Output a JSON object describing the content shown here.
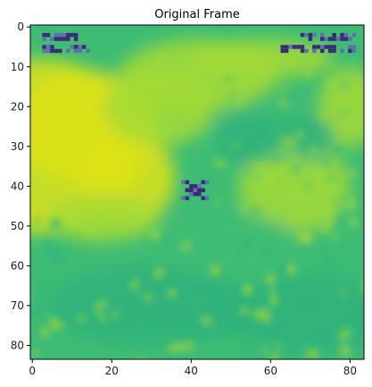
{
  "figure": {
    "title": "Original Frame",
    "colormap": "viridis",
    "frame": {
      "width": 84,
      "height": 84,
      "xlim": [
        -0.5,
        83.5
      ],
      "ylim": [
        83.5,
        -0.5
      ]
    },
    "x_ticks": [
      {
        "value": 0,
        "label": "0"
      },
      {
        "value": 20,
        "label": "20"
      },
      {
        "value": 40,
        "label": "40"
      },
      {
        "value": 60,
        "label": "60"
      },
      {
        "value": 80,
        "label": "80"
      }
    ],
    "y_ticks": [
      {
        "value": 0,
        "label": "0"
      },
      {
        "value": 10,
        "label": "10"
      },
      {
        "value": 20,
        "label": "20"
      },
      {
        "value": 30,
        "label": "30"
      },
      {
        "value": 40,
        "label": "40"
      },
      {
        "value": 50,
        "label": "50"
      },
      {
        "value": 60,
        "label": "60"
      },
      {
        "value": 70,
        "label": "70"
      },
      {
        "value": 80,
        "label": "80"
      }
    ],
    "colors": {
      "bright": "#dde318",
      "mid": "#a5db36",
      "base": "#3ebc74",
      "low": "#2db27d",
      "marker": "#3b2a78",
      "marker_light": "#5f6fb0"
    }
  }
}
